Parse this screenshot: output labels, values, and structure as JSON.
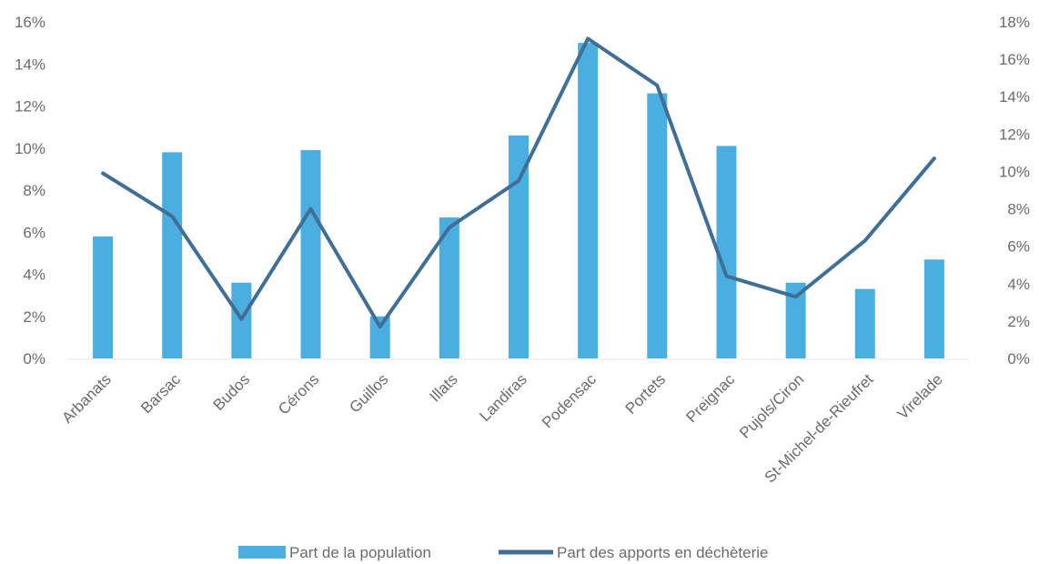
{
  "chart_data": {
    "type": "bar+line",
    "categories": [
      "Arbanats",
      "Barsac",
      "Budos",
      "Cérons",
      "Guillos",
      "Illats",
      "Landiras",
      "Podensac",
      "Portets",
      "Preignac",
      "Pujols/Ciron",
      "St-Michel-de-Rieufret",
      "Virelade"
    ],
    "series": [
      {
        "name": "Part de la population",
        "kind": "bar",
        "axis": "left",
        "color": "#4aaee0",
        "values": [
          5.8,
          9.8,
          3.6,
          9.9,
          2.0,
          6.7,
          10.6,
          15.0,
          12.6,
          10.1,
          3.6,
          3.3,
          4.7
        ]
      },
      {
        "name": "Part des apports en déchèterie",
        "kind": "line",
        "axis": "right",
        "color": "#3f6f96",
        "values": [
          9.9,
          7.6,
          2.1,
          8.0,
          1.7,
          7.0,
          9.5,
          17.1,
          14.6,
          4.4,
          3.3,
          6.3,
          10.7
        ]
      }
    ],
    "left_axis": {
      "ylim": [
        0,
        16
      ],
      "ticks": [
        "0%",
        "2%",
        "4%",
        "6%",
        "8%",
        "10%",
        "12%",
        "14%",
        "16%"
      ]
    },
    "right_axis": {
      "ylim": [
        0,
        18
      ],
      "ticks": [
        "0%",
        "2%",
        "4%",
        "6%",
        "8%",
        "10%",
        "12%",
        "14%",
        "16%",
        "18%"
      ]
    },
    "grid": false,
    "legend": "bottom"
  }
}
